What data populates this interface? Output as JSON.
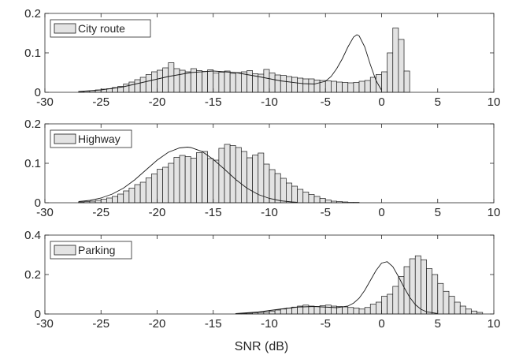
{
  "chart_data": [
    {
      "type": "histogram",
      "legend": "City route",
      "legend_position": "top-left",
      "xlim": [
        -30,
        10
      ],
      "ylim": [
        0,
        0.2
      ],
      "xticks": [
        -30,
        -25,
        -20,
        -15,
        -10,
        -5,
        0,
        5,
        10
      ],
      "yticks": [
        0,
        0.1,
        0.2
      ],
      "xtick_labels": [
        "-30",
        "-25",
        "-20",
        "-15",
        "-10",
        "-5",
        "0",
        "5",
        "10"
      ],
      "ytick_labels": [
        "0",
        "0.1",
        "0.2"
      ],
      "bin_start": -27,
      "bin_width": 0.5,
      "values": [
        0.002,
        0.003,
        0.004,
        0.006,
        0.008,
        0.009,
        0.012,
        0.015,
        0.021,
        0.026,
        0.032,
        0.038,
        0.045,
        0.052,
        0.056,
        0.062,
        0.075,
        0.06,
        0.056,
        0.052,
        0.06,
        0.055,
        0.053,
        0.057,
        0.049,
        0.051,
        0.054,
        0.048,
        0.05,
        0.052,
        0.055,
        0.047,
        0.046,
        0.058,
        0.049,
        0.044,
        0.043,
        0.04,
        0.038,
        0.036,
        0.034,
        0.034,
        0.031,
        0.03,
        0.029,
        0.028,
        0.026,
        0.025,
        0.024,
        0.025,
        0.028,
        0.03,
        0.038,
        0.045,
        0.052,
        0.1,
        0.163,
        0.134,
        0.054
      ],
      "fit_x": [
        -27,
        -25,
        -23,
        -21,
        -19,
        -17,
        -15,
        -13,
        -11,
        -9,
        -7,
        -6,
        -5,
        -4.5,
        -4,
        -3.5,
        -3,
        -2.5,
        -2.2,
        -2,
        -1.5,
        -1,
        -0.5,
        0
      ],
      "fit_y": [
        0.002,
        0.006,
        0.014,
        0.027,
        0.04,
        0.05,
        0.054,
        0.05,
        0.04,
        0.029,
        0.022,
        0.021,
        0.028,
        0.04,
        0.06,
        0.085,
        0.115,
        0.14,
        0.146,
        0.143,
        0.115,
        0.07,
        0.03,
        0.005
      ]
    },
    {
      "type": "histogram",
      "legend": "Highway",
      "legend_position": "top-left",
      "xlim": [
        -30,
        10
      ],
      "ylim": [
        0,
        0.2
      ],
      "xticks": [
        -30,
        -25,
        -20,
        -15,
        -10,
        -5,
        0,
        5,
        10
      ],
      "yticks": [
        0,
        0.1,
        0.2
      ],
      "xtick_labels": [
        "-30",
        "-25",
        "-20",
        "-15",
        "-10",
        "-5",
        "0",
        "5",
        "10"
      ],
      "ytick_labels": [
        "0",
        "0.1",
        "0.2"
      ],
      "bin_start": -27,
      "bin_width": 0.5,
      "values": [
        0.002,
        0.003,
        0.004,
        0.006,
        0.009,
        0.012,
        0.016,
        0.022,
        0.03,
        0.037,
        0.046,
        0.052,
        0.063,
        0.073,
        0.085,
        0.09,
        0.1,
        0.115,
        0.12,
        0.117,
        0.113,
        0.127,
        0.13,
        0.112,
        0.108,
        0.138,
        0.148,
        0.145,
        0.14,
        0.13,
        0.114,
        0.121,
        0.126,
        0.098,
        0.084,
        0.074,
        0.062,
        0.05,
        0.042,
        0.034,
        0.027,
        0.021,
        0.016,
        0.011,
        0.007,
        0.004,
        0.003,
        0.002,
        0.001,
        0.001
      ],
      "fit_x": [
        -27,
        -26,
        -25,
        -24,
        -23,
        -22,
        -21,
        -20,
        -19,
        -18,
        -17.3,
        -17,
        -16,
        -15,
        -14,
        -13,
        -12,
        -11,
        -10,
        -9,
        -8,
        -7.5
      ],
      "fit_y": [
        0.003,
        0.006,
        0.012,
        0.022,
        0.037,
        0.058,
        0.083,
        0.108,
        0.128,
        0.139,
        0.141,
        0.14,
        0.13,
        0.11,
        0.085,
        0.059,
        0.037,
        0.021,
        0.011,
        0.005,
        0.002,
        0.001
      ]
    },
    {
      "type": "histogram",
      "legend": "Parking",
      "legend_position": "top-left",
      "xlim": [
        -30,
        10
      ],
      "ylim": [
        0,
        0.4
      ],
      "xticks": [
        -30,
        -25,
        -20,
        -15,
        -10,
        -5,
        0,
        5,
        10
      ],
      "yticks": [
        0,
        0.2,
        0.4
      ],
      "xtick_labels": [
        "-30",
        "-25",
        "-20",
        "-15",
        "-10",
        "-5",
        "0",
        "5",
        "10"
      ],
      "ytick_labels": [
        "0",
        "0.2",
        "0.4"
      ],
      "bin_start": -13,
      "bin_width": 0.5,
      "values": [
        0.002,
        0.003,
        0.004,
        0.006,
        0.008,
        0.01,
        0.015,
        0.02,
        0.025,
        0.03,
        0.035,
        0.04,
        0.045,
        0.04,
        0.038,
        0.042,
        0.045,
        0.04,
        0.038,
        0.036,
        0.033,
        0.03,
        0.025,
        0.033,
        0.05,
        0.06,
        0.09,
        0.1,
        0.14,
        0.19,
        0.24,
        0.28,
        0.295,
        0.275,
        0.23,
        0.2,
        0.155,
        0.115,
        0.09,
        0.06,
        0.04,
        0.025,
        0.015,
        0.008
      ],
      "fit_x": [
        -13,
        -11,
        -9,
        -7.5,
        -6,
        -5,
        -4,
        -3,
        -2.5,
        -2,
        -1.5,
        -1,
        -0.5,
        0,
        0.5,
        1,
        1.5,
        2,
        2.5,
        3,
        3.5,
        4,
        5
      ],
      "fit_y": [
        0.002,
        0.01,
        0.025,
        0.035,
        0.038,
        0.035,
        0.032,
        0.04,
        0.055,
        0.08,
        0.12,
        0.17,
        0.22,
        0.258,
        0.265,
        0.24,
        0.19,
        0.135,
        0.085,
        0.048,
        0.024,
        0.011,
        0.002
      ]
    }
  ],
  "shared_xlabel": "SNR (dB)"
}
